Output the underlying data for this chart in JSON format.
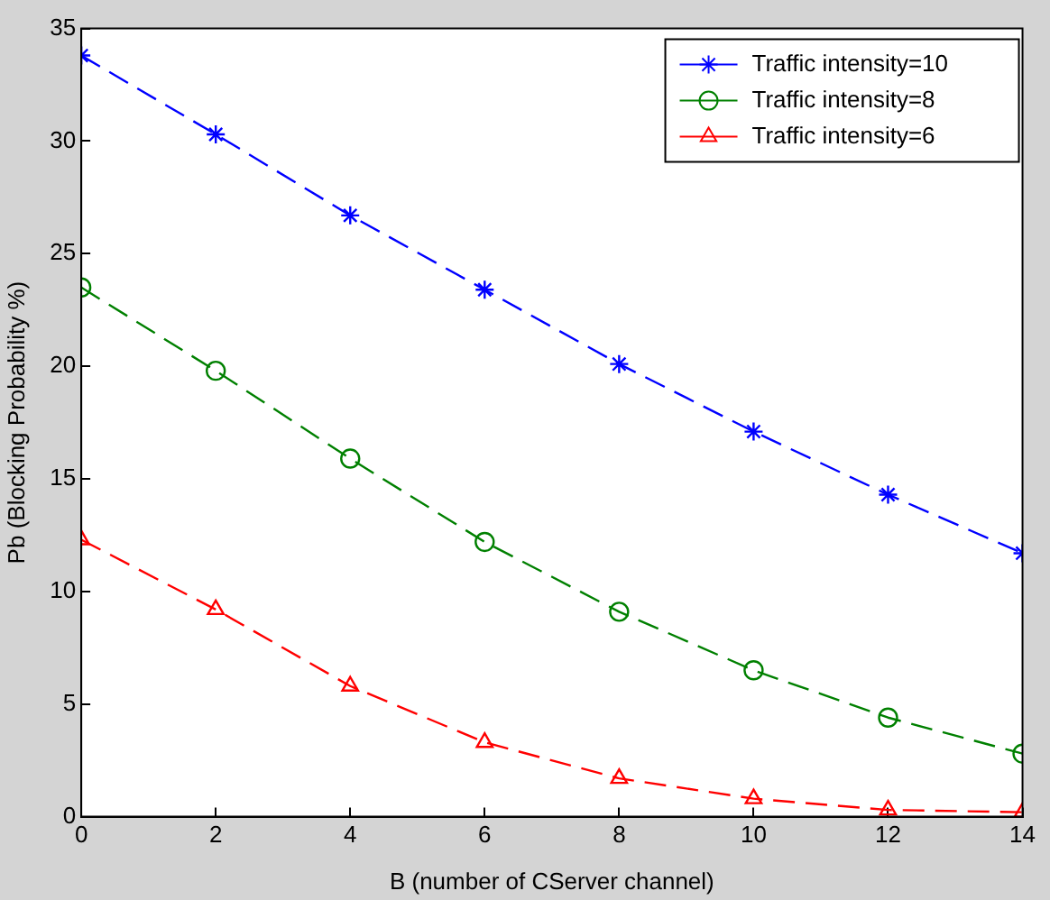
{
  "chart_data": {
    "type": "line",
    "xlabel": "B (number of CServer channel)",
    "ylabel": "Pb (Blocking Probability %)",
    "x": [
      0,
      2,
      4,
      6,
      8,
      10,
      12,
      14
    ],
    "series": [
      {
        "name": "Traffic intensity=10",
        "color": "#0000ff",
        "marker": "cross",
        "values": [
          33.8,
          30.3,
          26.7,
          23.4,
          20.1,
          17.1,
          14.3,
          11.7
        ]
      },
      {
        "name": "Traffic intensity=8",
        "color": "#008000",
        "marker": "circle",
        "values": [
          23.5,
          19.8,
          15.9,
          12.2,
          9.1,
          6.5,
          4.4,
          2.8
        ]
      },
      {
        "name": "Traffic intensity=6",
        "color": "#ff0000",
        "marker": "triangle",
        "values": [
          12.3,
          9.2,
          5.8,
          3.3,
          1.7,
          0.8,
          0.3,
          0.2
        ]
      }
    ],
    "xlim": [
      0,
      14
    ],
    "xticks": [
      0,
      2,
      4,
      6,
      8,
      10,
      12,
      14
    ],
    "ylim": [
      0,
      35
    ],
    "yticks": [
      0,
      5,
      10,
      15,
      20,
      25,
      30,
      35
    ],
    "line_style": "dashed",
    "legend": "top right",
    "grid": false
  }
}
